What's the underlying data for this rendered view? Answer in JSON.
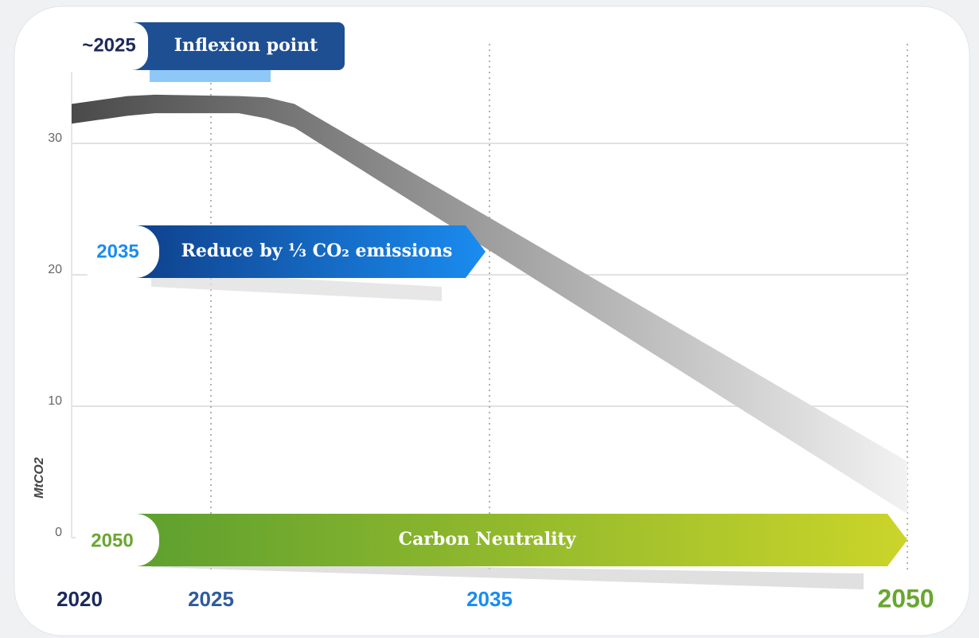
{
  "chart_data": {
    "type": "band",
    "y_label": "MtCO2",
    "x": [
      2020,
      2022,
      2023,
      2026,
      2027,
      2028,
      2050
    ],
    "upper": [
      33.0,
      33.6,
      33.7,
      33.6,
      33.5,
      33.0,
      5.8
    ],
    "lower": [
      31.5,
      32.1,
      32.3,
      32.3,
      31.9,
      31.2,
      1.8
    ],
    "color_start": "#4a4a4a",
    "color_end": "#f2f2f2",
    "xlim": [
      2020,
      2050
    ],
    "ylim": [
      0,
      35
    ],
    "yticks": [
      0,
      10,
      20,
      30
    ],
    "xticks": [
      2020,
      2025,
      2035,
      2050
    ],
    "xtick_colors": [
      "#1b2a5c",
      "#2d5b9e",
      "#1a8cf0",
      "#6aa631"
    ],
    "vgrid": [
      2025,
      2035,
      2050
    ],
    "grid": true,
    "annotations": [
      {
        "year": "~2025",
        "text": "Inflexion point"
      },
      {
        "year": "2035",
        "text": "Reduce by ⅓ CO₂ emissions"
      },
      {
        "year": "2050",
        "text": "Carbon Neutrality"
      }
    ]
  }
}
